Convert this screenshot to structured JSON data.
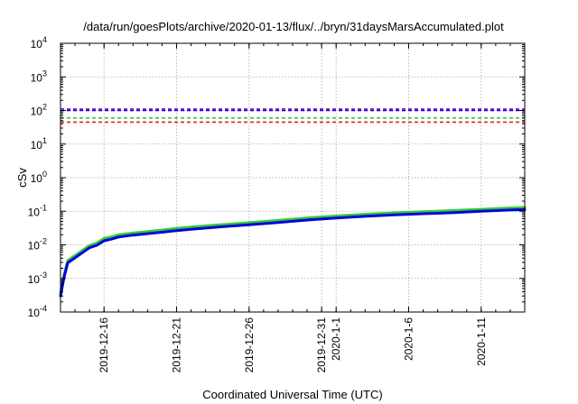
{
  "chart_data": {
    "type": "line",
    "title": "/data/run/goesPlots/archive/2020-01-13/flux/../bryn/31daysMarsAccumulated.plot",
    "xlabel": "Coordinated Universal Time (UTC)",
    "ylabel": "cSv",
    "yscale": "log",
    "ylim": [
      0.0001,
      10000
    ],
    "xlim": [
      "2019-12-13",
      "2020-01-14"
    ],
    "grid": true,
    "y_ticks": [
      {
        "value": 0.0001,
        "base": "10",
        "exp": "-4"
      },
      {
        "value": 0.001,
        "base": "10",
        "exp": "-3"
      },
      {
        "value": 0.01,
        "base": "10",
        "exp": "-2"
      },
      {
        "value": 0.1,
        "base": "10",
        "exp": "-1"
      },
      {
        "value": 1,
        "base": "10",
        "exp": "0"
      },
      {
        "value": 10,
        "base": "10",
        "exp": "1"
      },
      {
        "value": 100,
        "base": "10",
        "exp": "2"
      },
      {
        "value": 1000,
        "base": "10",
        "exp": "3"
      },
      {
        "value": 10000,
        "base": "10",
        "exp": "4"
      }
    ],
    "x_ticks": [
      {
        "date": "2019-12-16",
        "label": "2019-12-16"
      },
      {
        "date": "2019-12-21",
        "label": "2019-12-21"
      },
      {
        "date": "2019-12-26",
        "label": "2019-12-26"
      },
      {
        "date": "2019-12-31",
        "label": "2019-12-31"
      },
      {
        "date": "2020-01-01",
        "label": "2020-1-1"
      },
      {
        "date": "2020-01-06",
        "label": "2020-1-6"
      },
      {
        "date": "2020-01-11",
        "label": "2020-1-11"
      }
    ],
    "thresholds": [
      {
        "value": 110,
        "color": "#9400d3"
      },
      {
        "value": 100,
        "color": "#0000cd"
      },
      {
        "value": 60,
        "color": "#33cc33"
      },
      {
        "value": 45,
        "color": "#e02020"
      }
    ],
    "series": [
      {
        "color": "#33cc33",
        "x": [
          "2019-12-13",
          "2019-12-13T06:00",
          "2019-12-13T12:00",
          "2019-12-14",
          "2019-12-14T12:00",
          "2019-12-15",
          "2019-12-15T12:00",
          "2019-12-16",
          "2019-12-16T12:00",
          "2019-12-17",
          "2019-12-18",
          "2019-12-19",
          "2019-12-20",
          "2019-12-21",
          "2019-12-22",
          "2019-12-24",
          "2019-12-26",
          "2019-12-28",
          "2019-12-30",
          "2020-01-01",
          "2020-01-03",
          "2020-01-05",
          "2020-01-07",
          "2020-01-09",
          "2020-01-11",
          "2020-01-13",
          "2020-01-14"
        ],
        "values": [
          0.00038,
          0.0013,
          0.0034,
          0.0048,
          0.0068,
          0.0095,
          0.0113,
          0.0155,
          0.0172,
          0.0198,
          0.0225,
          0.0248,
          0.0276,
          0.0308,
          0.0338,
          0.0395,
          0.0458,
          0.0535,
          0.0635,
          0.0725,
          0.0815,
          0.0895,
          0.0975,
          0.1045,
          0.1145,
          0.1255,
          0.13
        ]
      },
      {
        "color": "#0000e0",
        "x": [
          "2019-12-13",
          "2019-12-13T06:00",
          "2019-12-13T12:00",
          "2019-12-14",
          "2019-12-14T12:00",
          "2019-12-15",
          "2019-12-15T12:00",
          "2019-12-16",
          "2019-12-16T12:00",
          "2019-12-17",
          "2019-12-18",
          "2019-12-19",
          "2019-12-20",
          "2019-12-21",
          "2019-12-22",
          "2019-12-24",
          "2019-12-26",
          "2019-12-28",
          "2019-12-30",
          "2020-01-01",
          "2020-01-03",
          "2020-01-05",
          "2020-01-07",
          "2020-01-09",
          "2020-01-11",
          "2020-01-13",
          "2020-01-14"
        ],
        "values": [
          0.0003,
          0.0011,
          0.0029,
          0.0041,
          0.0058,
          0.0082,
          0.0097,
          0.0132,
          0.0148,
          0.0171,
          0.0195,
          0.0215,
          0.0238,
          0.0265,
          0.0292,
          0.0342,
          0.0398,
          0.0462,
          0.0548,
          0.0628,
          0.0705,
          0.0778,
          0.0845,
          0.0905,
          0.0995,
          0.1085,
          0.112
        ]
      }
    ]
  }
}
